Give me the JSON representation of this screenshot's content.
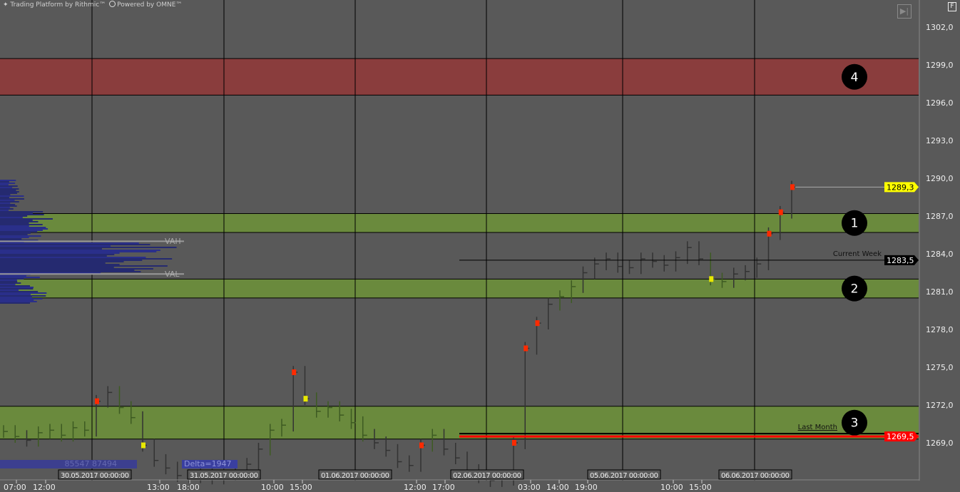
{
  "header": {
    "platform_text": "Trading Platform by Rithmic™",
    "powered_text": "Powered by OMNE™"
  },
  "controls": {
    "scroll_end_label": "▶|",
    "f_button_label": "F"
  },
  "price_axis": {
    "ticks": [
      "1302,0",
      "1299,0",
      "1296,0",
      "1293,0",
      "1290,0",
      "1287,0",
      "1284,0",
      "1281,0",
      "1278,0",
      "1275,0",
      "1272,0",
      "1269,0"
    ]
  },
  "time_axis": {
    "ticks": [
      "07:00",
      "12:00",
      "13:00",
      "18:00",
      "10:00",
      "15:00",
      "12:00",
      "17:00",
      "03:00",
      "14:00",
      "19:00",
      "10:00",
      "15:00"
    ],
    "date_boxes": [
      "30.05.2017 00:00:00",
      "31.05.2017 00:00:00",
      "01.06.2017 00:00:00",
      "02.06.2017 00:00:00",
      "05.06.2017 00:00:00",
      "06.06.2017 00:00:00"
    ]
  },
  "markers": {
    "last_price": {
      "label": "1289,3",
      "value": 1289.3,
      "color": "#ffff00"
    },
    "current_week": {
      "label": "Current Week",
      "price_label": "1283,5",
      "value": 1283.5
    },
    "last_month": {
      "label": "Last Month",
      "price_label": "1269,5",
      "value": 1269.5,
      "color": "#ff0000"
    }
  },
  "profile": {
    "vah_label": "VAH",
    "val_label": "VAL",
    "vah": 1285.0,
    "val": 1282.4,
    "volume_text": "85547 87494",
    "delta_text": "Delta=1947",
    "color": "#2a2f8a"
  },
  "zones": [
    {
      "number": "4",
      "top": 1299.5,
      "bottom": 1296.6,
      "color": "#8a3d3d"
    },
    {
      "number": "1",
      "top": 1287.2,
      "bottom": 1285.7,
      "color": "#6a8a3d"
    },
    {
      "number": "2",
      "top": 1282.0,
      "bottom": 1280.5,
      "color": "#6a8a3d"
    },
    {
      "number": "3",
      "top": 1271.9,
      "bottom": 1269.3,
      "color": "#6a8a3d"
    }
  ],
  "chart_data": {
    "type": "line",
    "ylim": [
      1265.8,
      1304.0
    ],
    "grid": true,
    "prices": [
      1269.9,
      1269.5,
      1269.2,
      1269.8,
      1270.0,
      1269.6,
      1270.2,
      1270.0,
      1272.3,
      1273.0,
      1271.8,
      1271.0,
      1268.8,
      1267.6,
      1267.0,
      1266.4,
      1266.3,
      1266.5,
      1266.2,
      1266.5,
      1266.8,
      1267.3,
      1268.5,
      1270.0,
      1270.4,
      1274.6,
      1272.5,
      1271.5,
      1271.8,
      1271.2,
      1270.6,
      1269.6,
      1269.0,
      1268.4,
      1267.5,
      1267.2,
      1268.8,
      1269.6,
      1268.5,
      1267.8,
      1266.8,
      1266.3,
      1266.0,
      1266.1,
      1269.0,
      1276.5,
      1278.5,
      1280.0,
      1280.6,
      1281.4,
      1282.5,
      1283.2,
      1283.6,
      1283.0,
      1282.9,
      1283.6,
      1283.4,
      1283.1,
      1283.7,
      1284.5,
      1283.6,
      1282.0,
      1281.8,
      1282.4,
      1282.6,
      1283.2,
      1285.6,
      1287.3,
      1289.3
    ]
  }
}
